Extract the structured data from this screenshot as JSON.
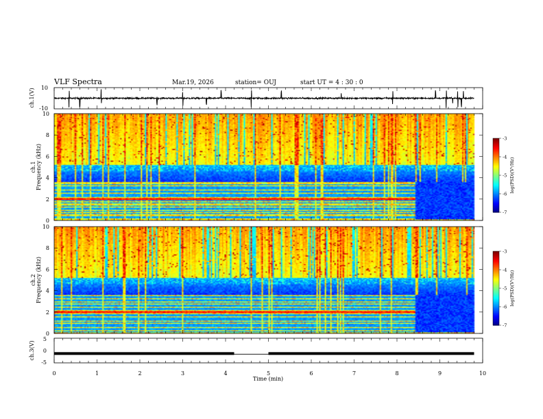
{
  "header": {
    "title": "VLF Spectra",
    "date": "Mar.19, 2026",
    "station": "station= OUJ",
    "start": "start  UT =   4 : 30 : 0"
  },
  "chart_data": [
    {
      "type": "line",
      "name": "ch1-waveform",
      "ylabel": "ch.1(V)",
      "xlim": [
        0,
        10
      ],
      "ylim": [
        -10,
        10
      ],
      "yticks": [
        "10",
        "-10"
      ],
      "baseline": 0,
      "spikes_min": [
        0.35,
        0.6,
        1.1,
        2.4,
        3.0,
        3.55,
        3.9,
        4.6,
        5.3,
        6.7,
        7.9,
        8.9,
        9.15,
        9.3,
        9.42,
        9.5,
        9.55
      ]
    },
    {
      "type": "heatmap",
      "name": "ch1-spectrogram",
      "ylabel": "Frequency (kHz)",
      "channel_label": "ch.1",
      "xlim": [
        0,
        10
      ],
      "ylim": [
        0,
        10
      ],
      "yticks": [
        "0",
        "2",
        "4",
        "6",
        "8",
        "10"
      ],
      "colorbar": {
        "label": "log(PSD)(V²/Hz)",
        "ticks": [
          "-3",
          "-4",
          "-5",
          "-6",
          "-7"
        ],
        "range": [
          -7,
          -3
        ]
      },
      "data_end_min": 9.8,
      "mode_change_min": 8.4,
      "bands_khz": [
        0.2,
        0.55,
        0.8,
        1.0,
        1.3,
        1.55,
        1.8,
        2.0,
        2.15,
        2.6,
        2.9,
        3.3,
        3.55
      ]
    },
    {
      "type": "heatmap",
      "name": "ch2-spectrogram",
      "ylabel": "Frequency (kHz)",
      "channel_label": "ch.2",
      "xlim": [
        0,
        10
      ],
      "ylim": [
        0,
        10
      ],
      "yticks": [
        "0",
        "2",
        "4",
        "6",
        "8",
        "10"
      ],
      "colorbar": {
        "label": "log(PSD)(V²/Hz)",
        "ticks": [
          "-3",
          "-4",
          "-5",
          "-6",
          "-7"
        ],
        "range": [
          -7,
          -3
        ]
      },
      "data_end_min": 9.8,
      "mode_change_min": 8.4,
      "bands_khz": [
        0.3,
        0.6,
        1.0,
        1.2,
        1.6,
        1.9,
        2.2,
        2.5,
        2.8,
        3.0,
        3.3,
        3.6
      ]
    },
    {
      "type": "line",
      "name": "ch3-waveform",
      "ylabel": "ch.3(V)",
      "xlabel": "Time (min)",
      "xlim": [
        0,
        10
      ],
      "ylim": [
        -5,
        5
      ],
      "yticks": [
        "5",
        "0",
        "-5"
      ],
      "xticks": [
        "0",
        "1",
        "2",
        "3",
        "4",
        "5",
        "6",
        "7",
        "8",
        "9",
        "10"
      ],
      "level_v": -1.2,
      "gap_min": [
        4.2,
        5.0
      ],
      "data_end_min": 9.8
    }
  ]
}
